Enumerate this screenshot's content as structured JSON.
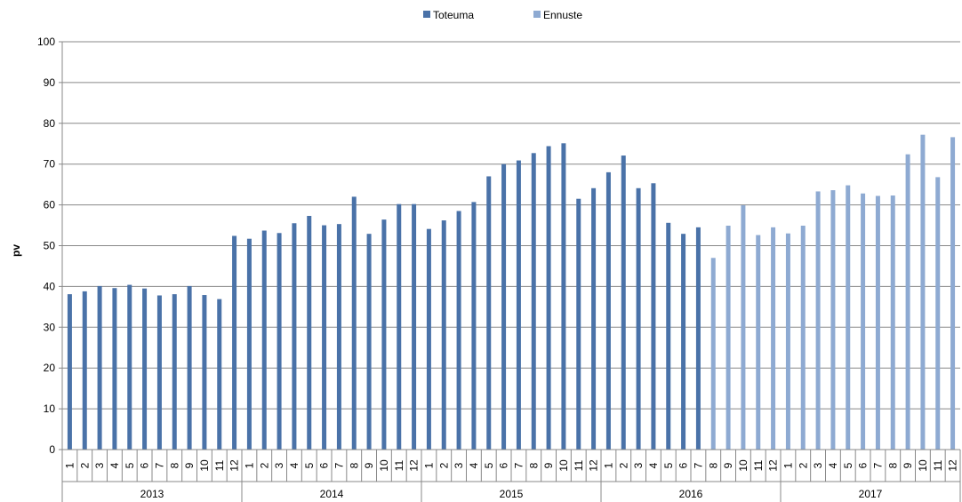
{
  "chart_data": {
    "type": "bar",
    "title": "",
    "xlabel": "",
    "ylabel": "pv",
    "ylim": [
      0,
      100
    ],
    "yticks": [
      0,
      10,
      20,
      30,
      40,
      50,
      60,
      70,
      80,
      90,
      100
    ],
    "grid": true,
    "legend_position": "top-center",
    "years": [
      "2013",
      "2014",
      "2015",
      "2016",
      "2017"
    ],
    "months": [
      "1",
      "2",
      "3",
      "4",
      "5",
      "6",
      "7",
      "8",
      "9",
      "10",
      "11",
      "12"
    ],
    "series": [
      {
        "name": "Toteuma",
        "color": "#4a72a8",
        "values": [
          38.1,
          38.8,
          40.1,
          39.6,
          40.4,
          39.5,
          37.8,
          38.1,
          40.1,
          37.9,
          36.9,
          52.4,
          51.7,
          53.7,
          53.1,
          55.5,
          57.3,
          55.0,
          55.3,
          62.0,
          52.9,
          56.4,
          60.2,
          60.2,
          54.1,
          56.2,
          58.5,
          60.7,
          67.0,
          70.0,
          70.9,
          72.7,
          74.4,
          75.1,
          61.5,
          64.1,
          68.0,
          72.1,
          64.1,
          65.3,
          55.6,
          52.9,
          54.5,
          null,
          null,
          null,
          null,
          null,
          null,
          null,
          null,
          null,
          null,
          null,
          null,
          null,
          null,
          null,
          null,
          null
        ]
      },
      {
        "name": "Ennuste",
        "color": "#8eaad2",
        "values": [
          null,
          null,
          null,
          null,
          null,
          null,
          null,
          null,
          null,
          null,
          null,
          null,
          null,
          null,
          null,
          null,
          null,
          null,
          null,
          null,
          null,
          null,
          null,
          null,
          null,
          null,
          null,
          null,
          null,
          null,
          null,
          null,
          null,
          null,
          null,
          null,
          null,
          null,
          null,
          null,
          null,
          null,
          null,
          47.0,
          54.9,
          59.9,
          52.6,
          54.5,
          53.0,
          54.9,
          63.3,
          63.6,
          64.8,
          62.8,
          62.2,
          62.3,
          72.4,
          77.2,
          66.8,
          76.6
        ]
      }
    ]
  }
}
